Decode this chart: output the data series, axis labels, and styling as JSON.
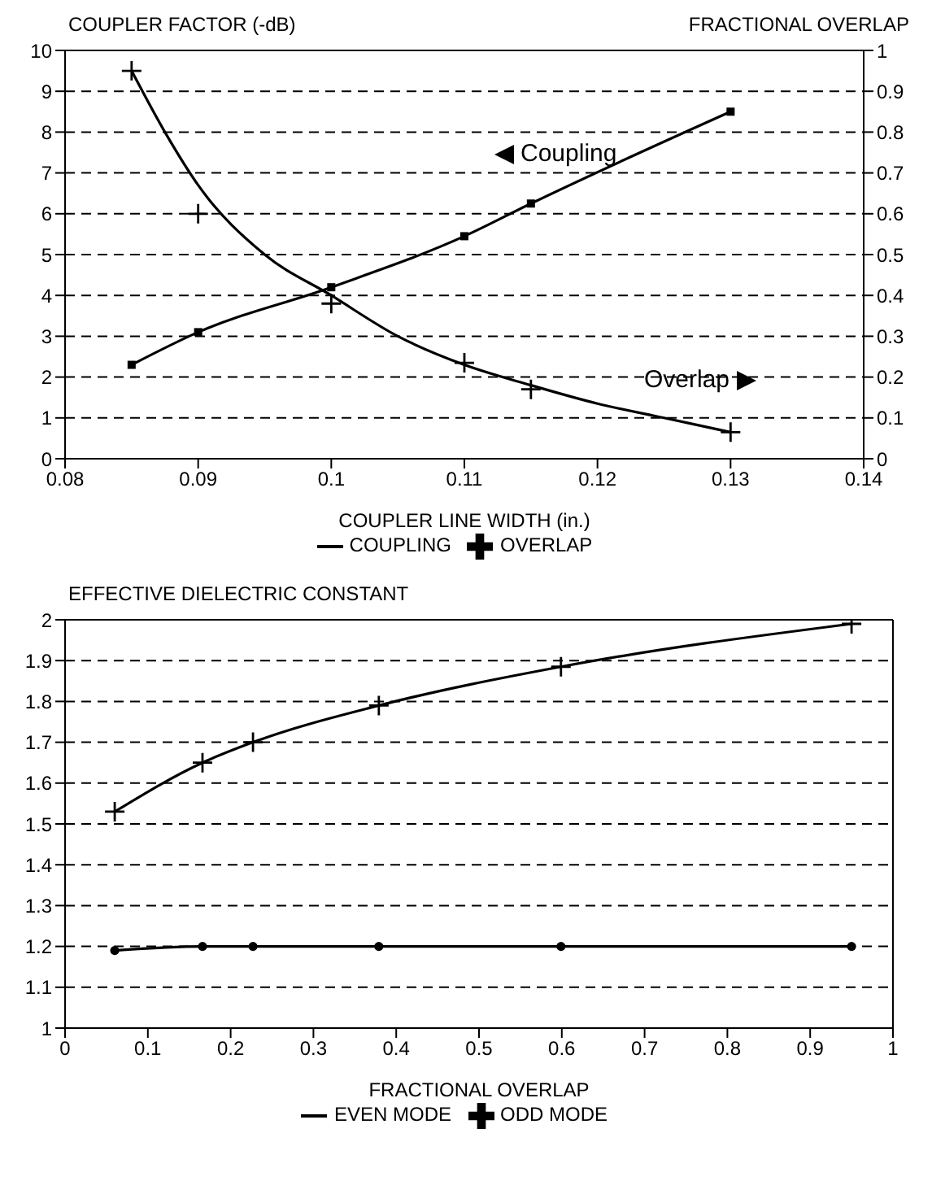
{
  "chart_data": [
    {
      "type": "line",
      "ylabel": "COUPLER FACTOR (-dB)",
      "y2label": "FRACTIONAL OVERLAP",
      "xlabel": "COUPLER LINE WIDTH (in.)",
      "x": [
        0.085,
        0.09,
        0.1,
        0.11,
        0.115,
        0.13
      ],
      "series": [
        {
          "name": "COUPLING",
          "color": "#000000",
          "marker": "square",
          "values": [
            2.3,
            3.1,
            4.2,
            5.45,
            6.25,
            8.5
          ]
        },
        {
          "name": "OVERLAP",
          "type": "scatter",
          "axis": "y2",
          "color": "#000000",
          "marker": "cross",
          "values": [
            0.95,
            0.6,
            0.38,
            0.235,
            0.17,
            0.065
          ]
        },
        {
          "type": "line",
          "axis": "y2",
          "color": "#000000",
          "marker": "none",
          "x": [
            0.085,
            0.0875,
            0.09,
            0.095,
            0.1,
            0.105,
            0.11,
            0.115,
            0.12,
            0.125,
            0.13
          ],
          "values": [
            0.95,
            0.8,
            0.67,
            0.5,
            0.4,
            0.3,
            0.23,
            0.18,
            0.135,
            0.1,
            0.065
          ]
        }
      ],
      "xlim": [
        0.08,
        0.14
      ],
      "xticks": [
        0.08,
        0.09,
        0.1,
        0.11,
        0.12,
        0.13,
        0.14
      ],
      "ylim": [
        0,
        10
      ],
      "yticks": [
        0,
        1,
        2,
        3,
        4,
        5,
        6,
        7,
        8,
        9,
        10
      ],
      "y2lim": [
        0,
        1
      ],
      "y2ticks": [
        0,
        0.1,
        0.2,
        0.3,
        0.4,
        0.5,
        0.6,
        0.7,
        0.8,
        0.9,
        1
      ],
      "annotations": [
        "Coupling",
        "Overlap"
      ],
      "grid": "y",
      "legend": "bottom"
    },
    {
      "type": "line",
      "ylabel": "EFFECTIVE DIELECTRIC CONSTANT",
      "xlabel": "FRACTIONAL OVERLAP",
      "x": [
        0.06,
        0.166,
        0.227,
        0.379,
        0.599,
        0.95
      ],
      "series": [
        {
          "name": "EVEN MODE",
          "color": "#000000",
          "marker": "circle",
          "values": [
            1.19,
            1.2,
            1.2,
            1.2,
            1.2,
            1.2
          ]
        },
        {
          "name": "ODD MODE",
          "color": "#000000",
          "marker": "cross",
          "values": [
            1.53,
            1.65,
            1.7,
            1.79,
            1.885,
            1.99
          ]
        }
      ],
      "xlim": [
        0,
        1
      ],
      "xticks": [
        0,
        0.1,
        0.2,
        0.3,
        0.4,
        0.5,
        0.6,
        0.7,
        0.8,
        0.9,
        1
      ],
      "ylim": [
        1,
        2
      ],
      "yticks": [
        1,
        1.1,
        1.2,
        1.3,
        1.4,
        1.5,
        1.6,
        1.7,
        1.8,
        1.9,
        2
      ],
      "grid": "y",
      "legend": "bottom"
    }
  ]
}
